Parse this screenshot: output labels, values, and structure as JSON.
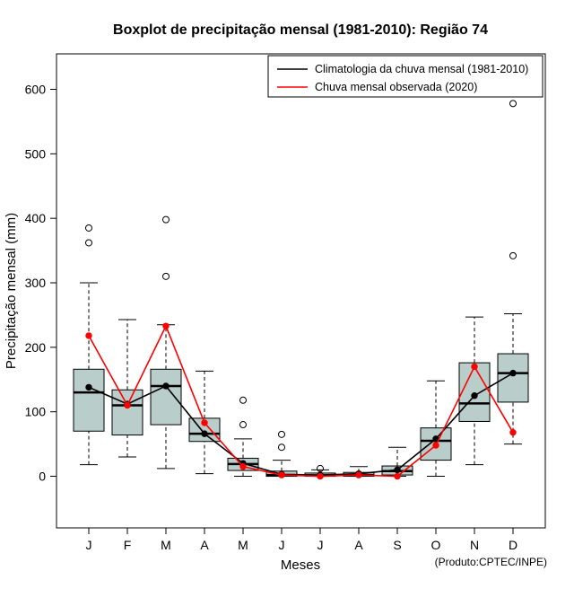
{
  "credit": "(Produto:CPTEC/INPE)",
  "chart_data": {
    "type": "boxplot",
    "title": "Boxplot de precipitação mensal (1981-2010): Região 74",
    "xlabel": "Meses",
    "ylabel": "Precipitação mensal (mm)",
    "categories": [
      "J",
      "F",
      "M",
      "A",
      "M",
      "J",
      "J",
      "A",
      "S",
      "O",
      "N",
      "D"
    ],
    "yticks": [
      0,
      100,
      200,
      300,
      400,
      500,
      600
    ],
    "ylim": [
      -80,
      655
    ],
    "grid": false,
    "legend_position": "top-right",
    "box_fill": "#b9cdca",
    "colors": {
      "climatology": "#000000",
      "observed": "#ff0000"
    },
    "legend": [
      {
        "label": "Climatologia da chuva mensal (1981-2010)",
        "color": "#000000"
      },
      {
        "label": "Chuva mensal observada (2020)",
        "color": "#ff0000"
      }
    ],
    "boxes": [
      {
        "month": "J",
        "low": 18,
        "q1": 70,
        "median": 130,
        "q3": 166,
        "high": 300,
        "outliers": [
          362,
          385
        ]
      },
      {
        "month": "F",
        "low": 30,
        "q1": 64,
        "median": 110,
        "q3": 134,
        "high": 243,
        "outliers": []
      },
      {
        "month": "M",
        "low": 12,
        "q1": 80,
        "median": 140,
        "q3": 166,
        "high": 235,
        "outliers": [
          310,
          398
        ]
      },
      {
        "month": "A",
        "low": 4,
        "q1": 54,
        "median": 66,
        "q3": 90,
        "high": 163,
        "outliers": []
      },
      {
        "month": "M",
        "low": 0,
        "q1": 9,
        "median": 19,
        "q3": 28,
        "high": 58,
        "outliers": [
          80,
          118
        ]
      },
      {
        "month": "J",
        "low": 0,
        "q1": 0,
        "median": 2,
        "q3": 8,
        "high": 25,
        "outliers": [
          45,
          65
        ]
      },
      {
        "month": "J",
        "low": 0,
        "q1": 0,
        "median": 1,
        "q3": 5,
        "high": 10,
        "outliers": [
          12
        ]
      },
      {
        "month": "A",
        "low": 0,
        "q1": 0,
        "median": 2,
        "q3": 6,
        "high": 15,
        "outliers": []
      },
      {
        "month": "S",
        "low": 0,
        "q1": 2,
        "median": 8,
        "q3": 16,
        "high": 45,
        "outliers": []
      },
      {
        "month": "O",
        "low": 0,
        "q1": 25,
        "median": 55,
        "q3": 75,
        "high": 148,
        "outliers": []
      },
      {
        "month": "N",
        "low": 18,
        "q1": 85,
        "median": 113,
        "q3": 176,
        "high": 247,
        "outliers": []
      },
      {
        "month": "D",
        "low": 50,
        "q1": 115,
        "median": 160,
        "q3": 190,
        "high": 252,
        "outliers": [
          342,
          578
        ]
      }
    ],
    "series": [
      {
        "name": "Climatologia da chuva mensal (1981-2010)",
        "color": "#000000",
        "values": [
          138,
          112,
          140,
          66,
          20,
          3,
          2,
          4,
          10,
          58,
          125,
          160
        ]
      },
      {
        "name": "Chuva mensal observada (2020)",
        "color": "#ff0000",
        "values": [
          218,
          110,
          233,
          83,
          15,
          2,
          0,
          2,
          0,
          48,
          170,
          68
        ]
      }
    ]
  }
}
